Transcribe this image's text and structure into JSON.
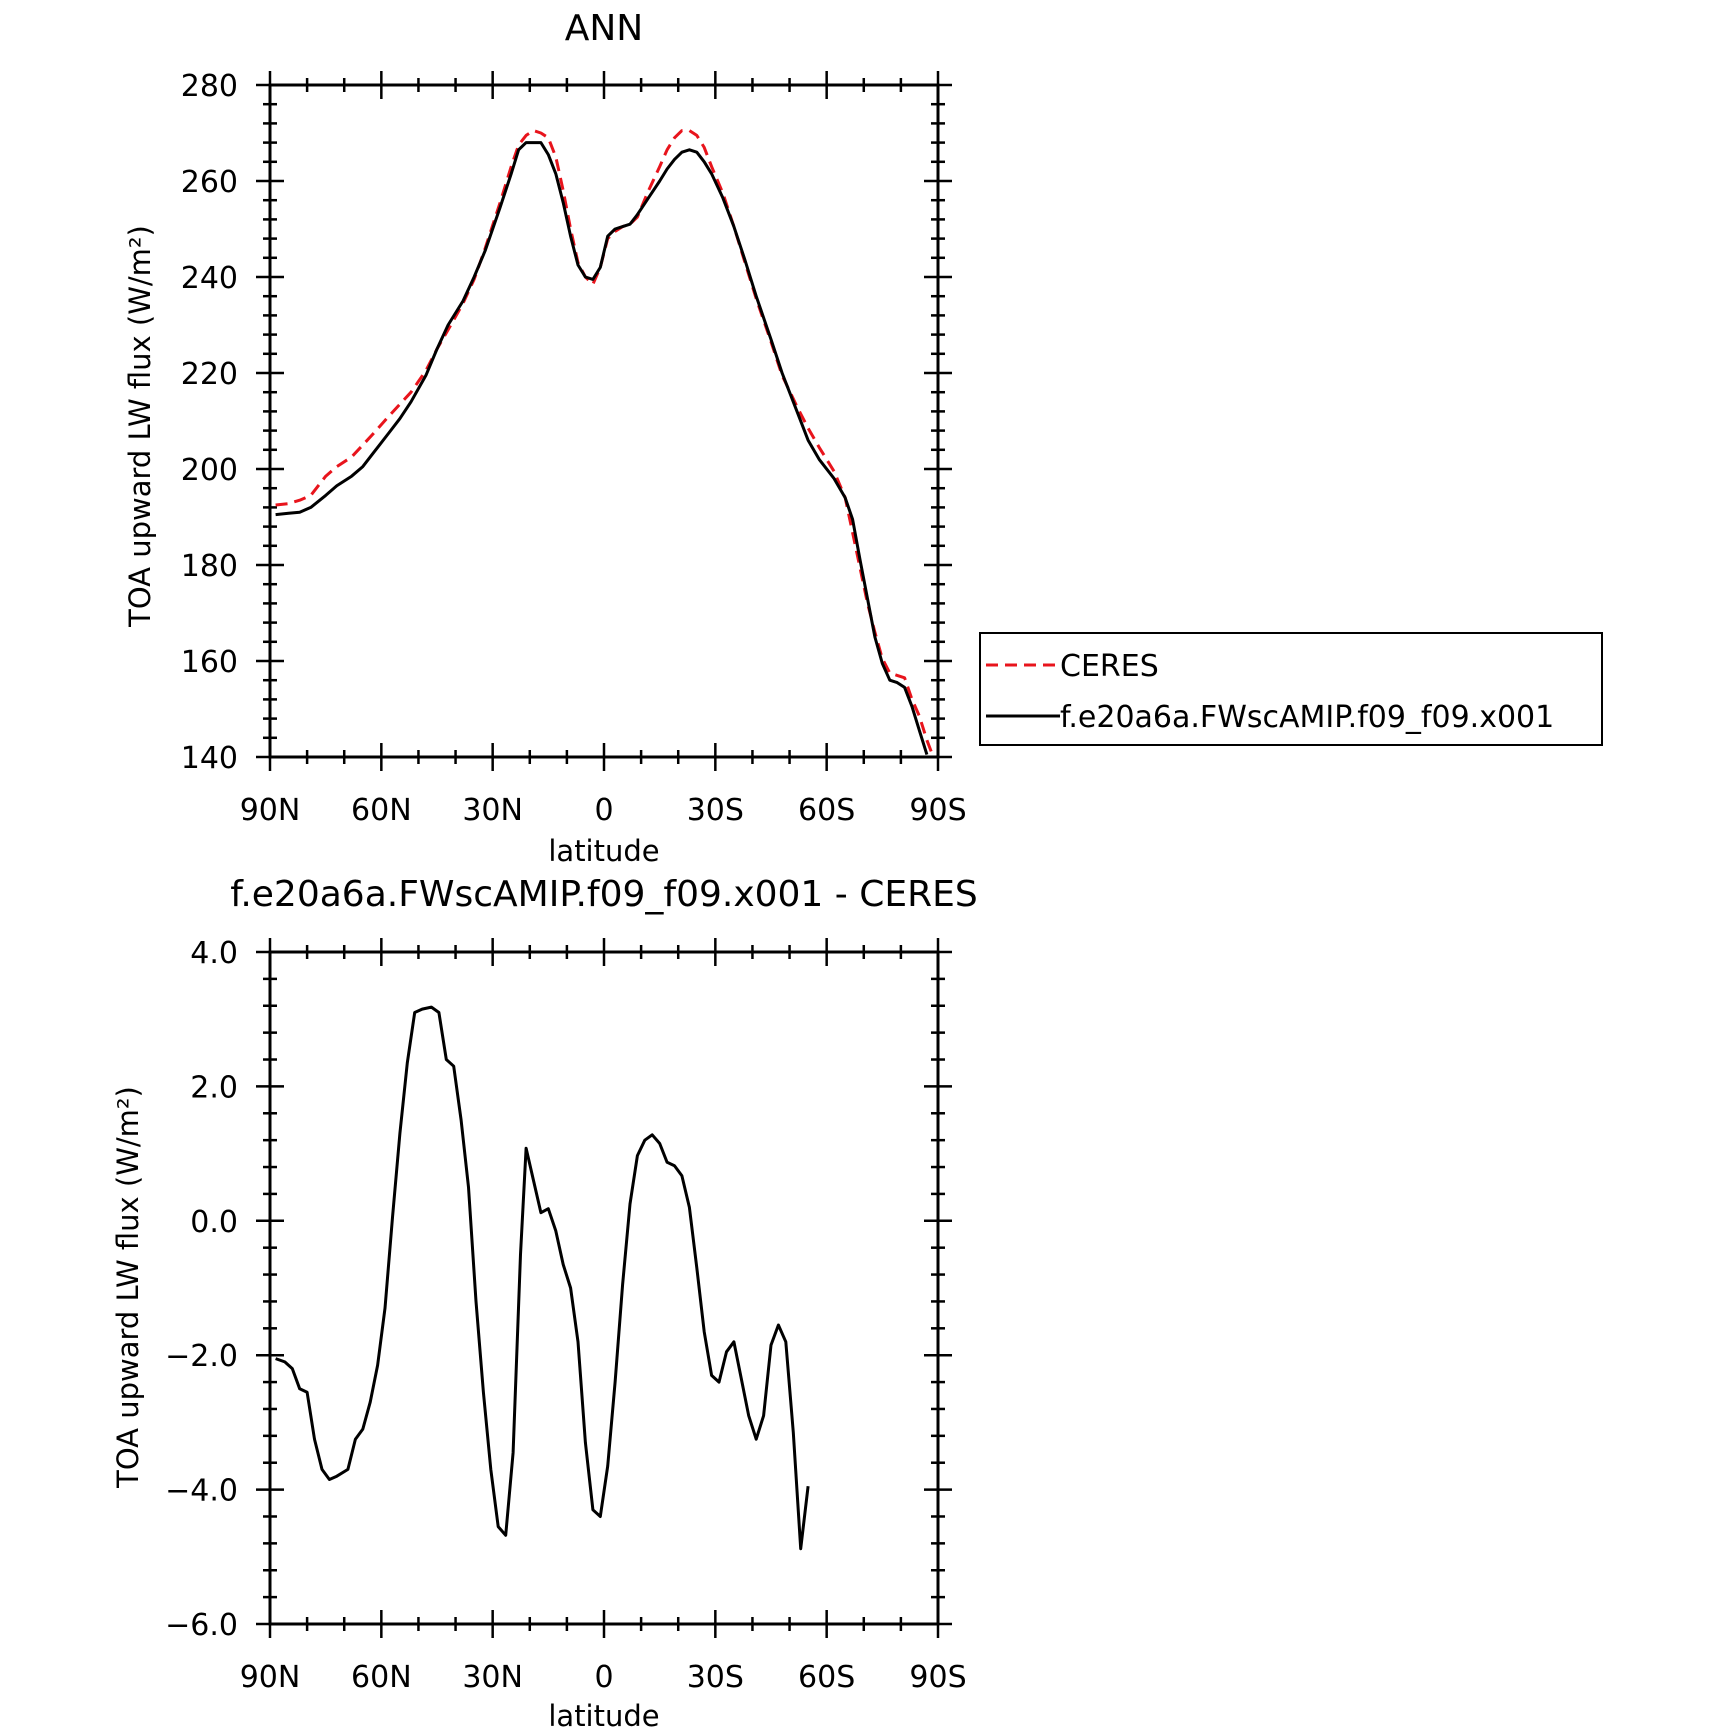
{
  "chart_data": [
    {
      "type": "line",
      "title": "ANN",
      "xlabel": "latitude",
      "ylabel": "TOA upward LW flux (W/m²)",
      "xlim": [
        90,
        -90
      ],
      "ylim": [
        140,
        280
      ],
      "yticks": [
        140,
        160,
        180,
        200,
        220,
        240,
        260,
        280
      ],
      "yticklabels": [
        "140",
        "160",
        "180",
        "200",
        "220",
        "240",
        "260",
        "280"
      ],
      "xticks": [
        90,
        60,
        30,
        0,
        -30,
        -60,
        -90
      ],
      "xticklabels": [
        "90N",
        "60N",
        "30N",
        "0",
        "30S",
        "60S",
        "90S"
      ],
      "grid": false,
      "legend": "outside-right",
      "series": [
        {
          "name": "CERES",
          "color": "#e8141c",
          "dash": "dashed",
          "points": [
            [
              88.5,
              192.5
            ],
            [
              85,
              192.8
            ],
            [
              82,
              193.5
            ],
            [
              79,
              194.5
            ],
            [
              75,
              198.5
            ],
            [
              72,
              200.5
            ],
            [
              68,
              202.5
            ],
            [
              65,
              205
            ],
            [
              62,
              207.5
            ],
            [
              58,
              211
            ],
            [
              55,
              213.5
            ],
            [
              52,
              216
            ],
            [
              48,
              220.5
            ],
            [
              45,
              225
            ],
            [
              42,
              229
            ],
            [
              38,
              234.5
            ],
            [
              35,
              239.5
            ],
            [
              32,
              246
            ],
            [
              28,
              255.5
            ],
            [
              25,
              263
            ],
            [
              23,
              267.5
            ],
            [
              21,
              269.5
            ],
            [
              19,
              270.5
            ],
            [
              17,
              270
            ],
            [
              15,
              269
            ],
            [
              13,
              265
            ],
            [
              11,
              258
            ],
            [
              9,
              250
            ],
            [
              7,
              243
            ],
            [
              5,
              240
            ],
            [
              3,
              238.5
            ],
            [
              1,
              242
            ],
            [
              -1,
              248
            ],
            [
              -3,
              249.5
            ],
            [
              -5,
              250.5
            ],
            [
              -7,
              251
            ],
            [
              -9,
              252.5
            ],
            [
              -12,
              258
            ],
            [
              -15,
              263
            ],
            [
              -17,
              266.5
            ],
            [
              -19,
              269
            ],
            [
              -21,
              270.5
            ],
            [
              -23,
              270.5
            ],
            [
              -25,
              269.5
            ],
            [
              -27,
              267
            ],
            [
              -29,
              263
            ],
            [
              -32,
              257.5
            ],
            [
              -35,
              250.5
            ],
            [
              -38,
              243
            ],
            [
              -41,
              235.5
            ],
            [
              -45,
              226.5
            ],
            [
              -48,
              219.5
            ],
            [
              -52,
              213
            ],
            [
              -55,
              208.5
            ],
            [
              -58,
              204.5
            ],
            [
              -62,
              199.5
            ],
            [
              -65,
              194
            ],
            [
              -68,
              183
            ],
            [
              -71,
              172
            ],
            [
              -73,
              166
            ],
            [
              -75,
              160.5
            ],
            [
              -77,
              157.5
            ],
            [
              -79,
              157
            ],
            [
              -81,
              156.5
            ],
            [
              -83,
              152
            ],
            [
              -85,
              148.5
            ],
            [
              -87,
              143.5
            ],
            [
              -88.5,
              140.5
            ]
          ]
        },
        {
          "name": "f.e20a6a.FWscAMIP.f09_f09.x001",
          "color": "#000000",
          "dash": "solid",
          "points": [
            [
              88.5,
              190.5
            ],
            [
              85,
              190.8
            ],
            [
              82,
              191
            ],
            [
              79,
              192
            ],
            [
              75,
              194.5
            ],
            [
              72,
              196.5
            ],
            [
              68,
              198.5
            ],
            [
              65,
              200.5
            ],
            [
              62,
              203.5
            ],
            [
              58,
              207.5
            ],
            [
              55,
              210.5
            ],
            [
              52,
              214
            ],
            [
              48,
              219.5
            ],
            [
              45,
              225
            ],
            [
              42,
              230
            ],
            [
              38,
              235
            ],
            [
              35,
              240
            ],
            [
              32,
              245.5
            ],
            [
              28,
              254.5
            ],
            [
              25,
              261.5
            ],
            [
              23,
              266.5
            ],
            [
              21,
              268
            ],
            [
              19,
              268
            ],
            [
              17,
              268
            ],
            [
              15,
              265.5
            ],
            [
              13,
              261.5
            ],
            [
              11,
              255.5
            ],
            [
              9,
              248.5
            ],
            [
              7,
              242.5
            ],
            [
              5,
              240
            ],
            [
              3,
              239.5
            ],
            [
              1,
              242
            ],
            [
              -1,
              248.5
            ],
            [
              -3,
              250
            ],
            [
              -5,
              250.5
            ],
            [
              -7,
              251
            ],
            [
              -9,
              253
            ],
            [
              -12,
              256.5
            ],
            [
              -15,
              260
            ],
            [
              -17,
              262.5
            ],
            [
              -19,
              264.5
            ],
            [
              -21,
              266
            ],
            [
              -23,
              266.5
            ],
            [
              -25,
              266
            ],
            [
              -27,
              264
            ],
            [
              -29,
              261.5
            ],
            [
              -32,
              256.5
            ],
            [
              -35,
              250.5
            ],
            [
              -38,
              243.5
            ],
            [
              -41,
              236
            ],
            [
              -45,
              227
            ],
            [
              -48,
              220
            ],
            [
              -52,
              212
            ],
            [
              -55,
              206
            ],
            [
              -58,
              202
            ],
            [
              -62,
              198
            ],
            [
              -65,
              194
            ],
            [
              -67,
              189.5
            ],
            [
              -69,
              181
            ],
            [
              -71,
              173
            ],
            [
              -73,
              165
            ],
            [
              -75,
              159.5
            ],
            [
              -77,
              156
            ],
            [
              -79,
              155.5
            ],
            [
              -81,
              154.5
            ],
            [
              -83,
              150.5
            ],
            [
              -85,
              145.5
            ],
            [
              -87,
              140.5
            ]
          ]
        }
      ]
    },
    {
      "type": "line",
      "title": "f.e20a6a.FWscAMIP.f09_f09.x001 - CERES",
      "xlabel": "latitude",
      "ylabel": "TOA upward LW flux (W/m²)",
      "xlim": [
        90,
        -90
      ],
      "ylim": [
        -6,
        4
      ],
      "yticks": [
        -6,
        -4,
        -2,
        0,
        2,
        4
      ],
      "yticklabels": [
        "−6.0",
        "−4.0",
        "−2.0",
        "0.0",
        "2.0",
        "4.0"
      ],
      "xticks": [
        90,
        60,
        30,
        0,
        -30,
        -60,
        -90
      ],
      "xticklabels": [
        "90N",
        "60N",
        "30N",
        "0",
        "30S",
        "60S",
        "90S"
      ],
      "grid": false,
      "series": [
        {
          "color": "#000000",
          "dash": "solid",
          "points": [
            [
              88.5,
              -2.05
            ],
            [
              86,
              -2.1
            ],
            [
              84,
              -2.2
            ],
            [
              82,
              -2.5
            ],
            [
              80,
              -2.55
            ],
            [
              78,
              -3.25
            ],
            [
              76,
              -3.7
            ],
            [
              74,
              -3.85
            ],
            [
              72,
              -3.8
            ],
            [
              69,
              -3.7
            ],
            [
              67,
              -3.25
            ],
            [
              65,
              -3.1
            ],
            [
              63,
              -2.7
            ],
            [
              61,
              -2.15
            ],
            [
              59,
              -1.3
            ],
            [
              57,
              0.05
            ],
            [
              55,
              1.3
            ],
            [
              53,
              2.35
            ],
            [
              51,
              3.1
            ],
            [
              49,
              3.15
            ],
            [
              46.5,
              3.18
            ],
            [
              44.5,
              3.1
            ],
            [
              42.5,
              2.4
            ],
            [
              40.5,
              2.3
            ],
            [
              38.5,
              1.5
            ],
            [
              36.5,
              0.5
            ],
            [
              34.5,
              -1.2
            ],
            [
              32.5,
              -2.55
            ],
            [
              30.5,
              -3.7
            ],
            [
              28.5,
              -4.55
            ],
            [
              26.5,
              -4.68
            ],
            [
              24.5,
              -3.45
            ],
            [
              22.5,
              -0.5
            ],
            [
              21,
              1.08
            ],
            [
              19,
              0.6
            ],
            [
              17,
              0.12
            ],
            [
              15,
              0.18
            ],
            [
              13,
              -0.15
            ],
            [
              11,
              -0.65
            ],
            [
              9,
              -1.0
            ],
            [
              7,
              -1.8
            ],
            [
              5,
              -3.3
            ],
            [
              3,
              -4.3
            ],
            [
              1,
              -4.4
            ],
            [
              -1,
              -3.65
            ],
            [
              -3,
              -2.4
            ],
            [
              -5,
              -0.95
            ],
            [
              -7,
              0.25
            ],
            [
              -9,
              0.97
            ],
            [
              -11,
              1.2
            ],
            [
              -13,
              1.28
            ],
            [
              -15,
              1.15
            ],
            [
              -17,
              0.87
            ],
            [
              -19,
              0.82
            ],
            [
              -21,
              0.67
            ],
            [
              -23,
              0.2
            ],
            [
              -25,
              -0.7
            ],
            [
              -27,
              -1.65
            ],
            [
              -29,
              -2.3
            ],
            [
              -31,
              -2.4
            ],
            [
              -33,
              -1.95
            ],
            [
              -35,
              -1.8
            ],
            [
              -37,
              -2.35
            ],
            [
              -39,
              -2.9
            ],
            [
              -41,
              -3.25
            ],
            [
              -43,
              -2.9
            ],
            [
              -45,
              -1.85
            ],
            [
              -47,
              -1.55
            ],
            [
              -49,
              -1.8
            ],
            [
              -51,
              -3.15
            ],
            [
              -53,
              -4.88
            ],
            [
              -55,
              -3.95
            ]
          ]
        }
      ]
    }
  ]
}
